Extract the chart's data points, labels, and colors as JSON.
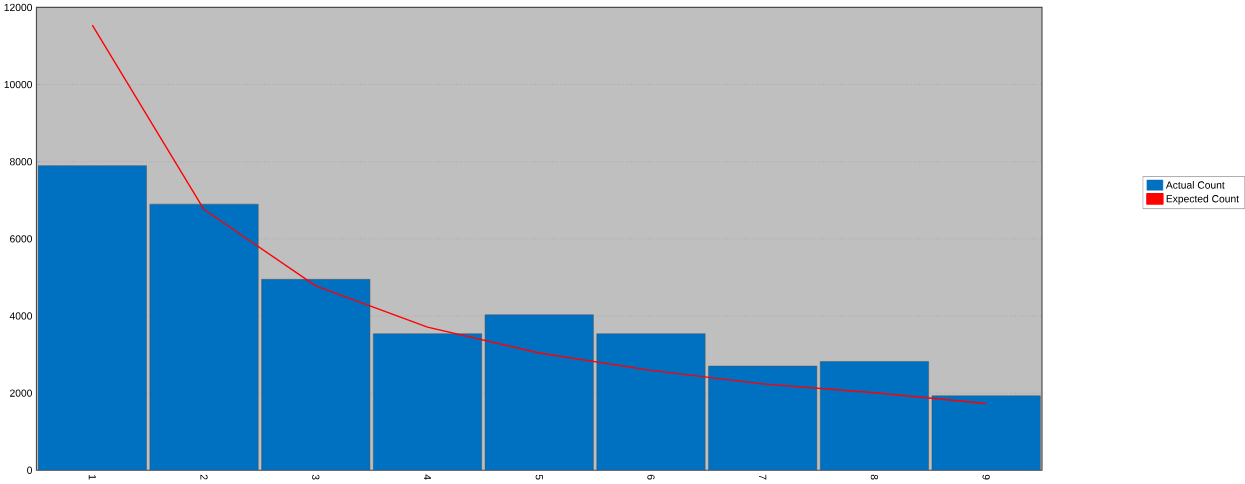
{
  "chart_data": {
    "type": "bar",
    "categories": [
      "1",
      "2",
      "3",
      "4",
      "5",
      "6",
      "7",
      "8",
      "9"
    ],
    "series": [
      {
        "name": "Actual Count",
        "color": "#0070c0",
        "values": [
          7900,
          6900,
          4950,
          3540,
          4030,
          3540,
          2700,
          2820,
          1930
        ]
      },
      {
        "name": "Expected Count",
        "type": "line",
        "color": "#ff0000",
        "values": [
          11540,
          6760,
          4780,
          3710,
          3040,
          2590,
          2240,
          2010,
          1730
        ]
      }
    ],
    "ylim": [
      0,
      12000
    ],
    "yticks": [
      0,
      2000,
      4000,
      6000,
      8000,
      10000,
      12000
    ],
    "grid": "y",
    "legend": "right",
    "marker": "none"
  }
}
